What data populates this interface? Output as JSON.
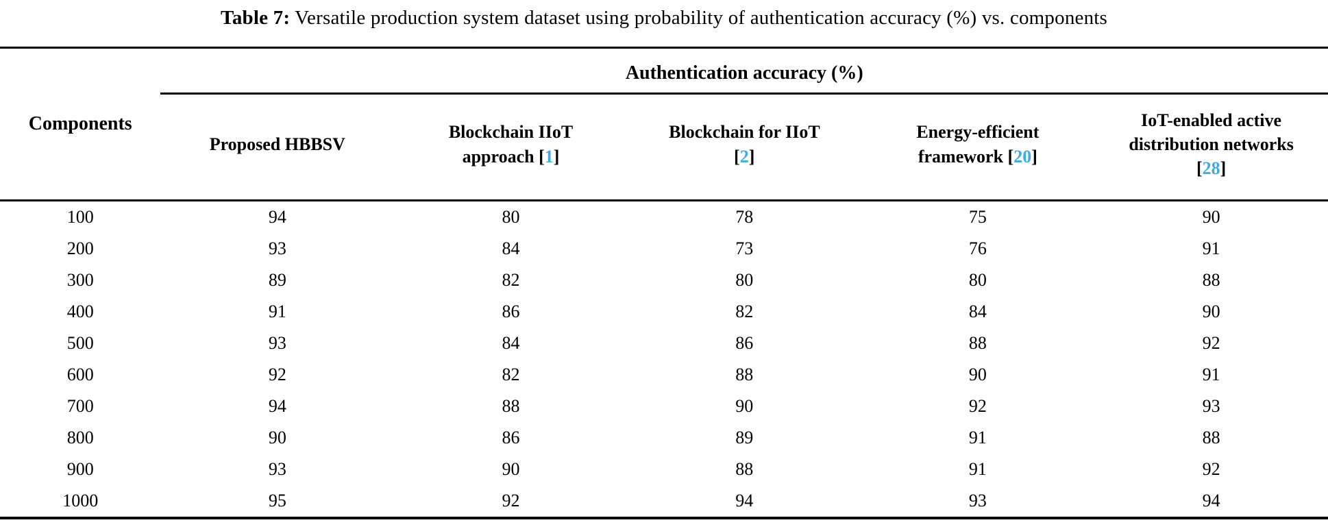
{
  "title": {
    "label": "Table 7:",
    "text": " Versatile production system dataset using probability of authentication accuracy (%) vs. components"
  },
  "colors": {
    "citation": "#41abde",
    "text": "#000000",
    "rule": "#000000"
  },
  "table": {
    "row_header": "Components",
    "span_header": "Authentication accuracy (%)",
    "cite_open": "[",
    "cite_close": "]",
    "columns": [
      {
        "text": "Proposed HBBSV",
        "cite": ""
      },
      {
        "text": "Blockchain IIoT approach",
        "cite": "1"
      },
      {
        "text": "Blockchain for IIoT",
        "cite": "2"
      },
      {
        "text": "Energy-efficient framework",
        "cite": "20"
      },
      {
        "text": "IoT-enabled active distribution networks",
        "cite": "28"
      }
    ],
    "rows": [
      [
        "100",
        "94",
        "80",
        "78",
        "75",
        "90"
      ],
      [
        "200",
        "93",
        "84",
        "73",
        "76",
        "91"
      ],
      [
        "300",
        "89",
        "82",
        "80",
        "80",
        "88"
      ],
      [
        "400",
        "91",
        "86",
        "82",
        "84",
        "90"
      ],
      [
        "500",
        "93",
        "84",
        "86",
        "88",
        "92"
      ],
      [
        "600",
        "92",
        "82",
        "88",
        "90",
        "91"
      ],
      [
        "700",
        "94",
        "88",
        "90",
        "92",
        "93"
      ],
      [
        "800",
        "90",
        "86",
        "89",
        "91",
        "88"
      ],
      [
        "900",
        "93",
        "90",
        "88",
        "91",
        "92"
      ],
      [
        "1000",
        "95",
        "92",
        "94",
        "93",
        "94"
      ]
    ]
  }
}
